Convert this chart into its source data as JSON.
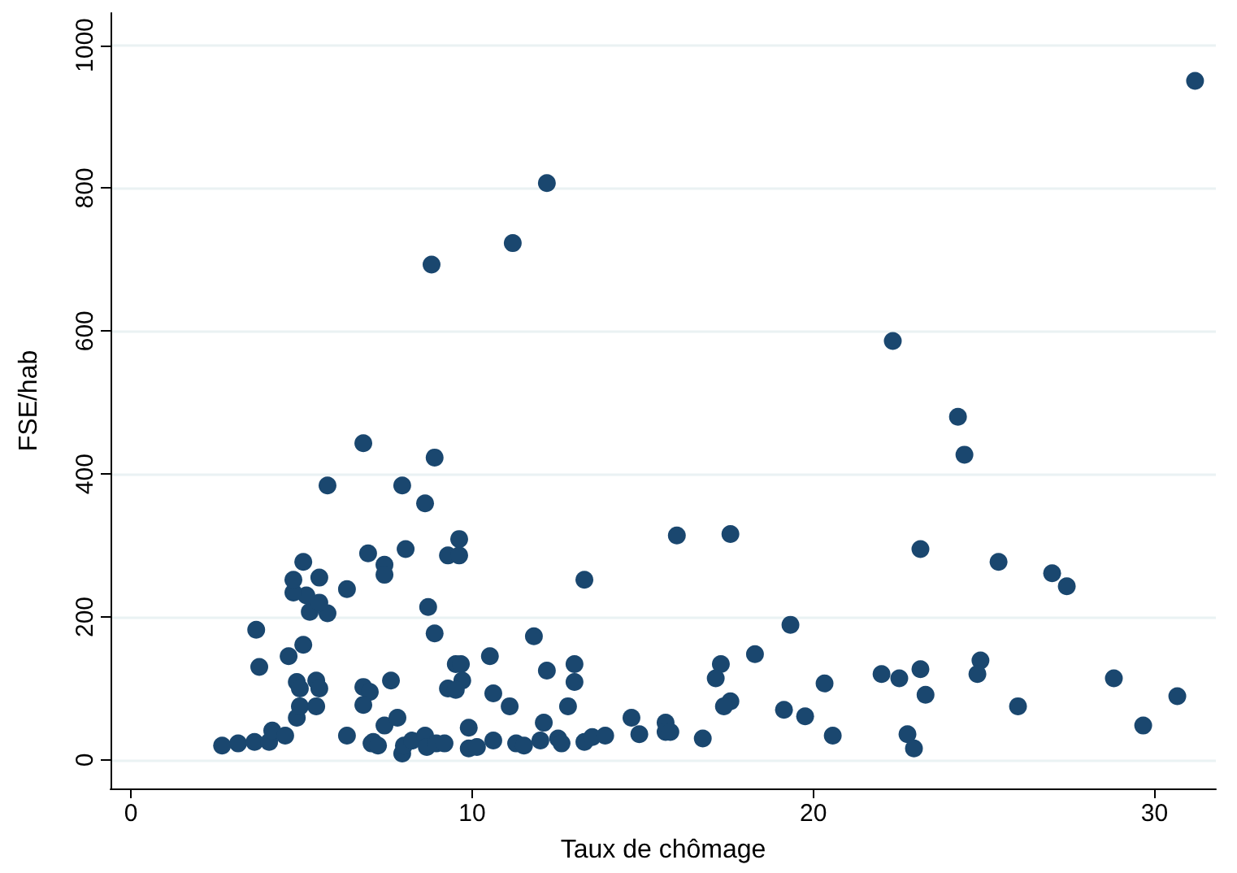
{
  "chart_data": {
    "type": "scatter",
    "xlabel": "Taux de chômage",
    "ylabel": "FSE/hab",
    "xlim": [
      -0.6,
      31.8
    ],
    "ylim": [
      -40,
      1045
    ],
    "xticks": [
      0,
      10,
      20,
      30
    ],
    "yticks": [
      0,
      200,
      400,
      600,
      800,
      1000
    ],
    "grid": "y",
    "marker": "circle",
    "series": [
      {
        "color": "#1a476f",
        "x": [
          2.67,
          3.14,
          3.62,
          4.05,
          4.14,
          4.52,
          3.67,
          3.76,
          4.86,
          4.95,
          5.43,
          4.86,
          4.95,
          5.43,
          5.52,
          4.62,
          5.05,
          5.24,
          5.76,
          5.52,
          5.14,
          4.76,
          4.76,
          5.52,
          5.05,
          6.33,
          5.76,
          6.95,
          6.81,
          6.33,
          7.05,
          6.81,
          7.0,
          6.81,
          7.1,
          7.24,
          7.43,
          7.81,
          7.62,
          7.43,
          7.43,
          7.95,
          8.05,
          8.62,
          8.9,
          8.81,
          7.95,
          8.0,
          8.24,
          8.62,
          8.67,
          8.95,
          9.19,
          8.71,
          8.9,
          9.29,
          9.62,
          9.62,
          9.52,
          9.67,
          9.71,
          9.29,
          9.52,
          9.9,
          9.9,
          10.14,
          10.62,
          10.52,
          10.62,
          11.1,
          11.19,
          11.29,
          11.52,
          11.81,
          12.0,
          12.1,
          12.19,
          12.19,
          12.52,
          12.62,
          12.81,
          13.0,
          13.0,
          13.29,
          13.29,
          13.52,
          13.9,
          14.67,
          14.9,
          15.67,
          15.67,
          15.81,
          16.0,
          16.76,
          17.29,
          17.14,
          17.57,
          17.38,
          17.57,
          18.29,
          19.14,
          19.33,
          19.76,
          20.33,
          20.57,
          22.0,
          22.52,
          22.33,
          23.14,
          23.14,
          23.29,
          22.76,
          22.95,
          24.24,
          24.43,
          24.9,
          24.81,
          25.43,
          26.0,
          27.0,
          27.43,
          28.81,
          29.67,
          30.67,
          31.19
        ],
        "values": [
          20,
          23,
          25,
          25,
          41,
          34,
          182,
          130,
          59,
          75,
          75,
          109,
          100,
          111,
          100,
          145,
          161,
          207,
          205,
          220,
          230,
          234,
          252,
          255,
          277,
          239,
          384,
          289,
          443,
          34,
          23,
          102,
          95,
          77,
          25,
          20,
          48,
          59,
          111,
          273,
          259,
          384,
          295,
          359,
          423,
          693,
          9,
          20,
          27,
          34,
          18,
          23,
          23,
          214,
          177,
          286,
          286,
          309,
          134,
          134,
          111,
          100,
          98,
          45,
          16,
          18,
          93,
          145,
          27,
          75,
          723,
          23,
          20,
          173,
          27,
          52,
          125,
          807,
          30,
          23,
          75,
          109,
          134,
          252,
          25,
          32,
          34,
          59,
          36,
          52,
          39,
          39,
          314,
          30,
          134,
          114,
          82,
          75,
          316,
          148,
          70,
          189,
          61,
          107,
          34,
          120,
          114,
          586,
          295,
          127,
          91,
          36,
          16,
          480,
          427,
          139,
          120,
          277,
          75,
          261,
          243,
          114,
          48,
          89,
          950
        ]
      }
    ]
  }
}
